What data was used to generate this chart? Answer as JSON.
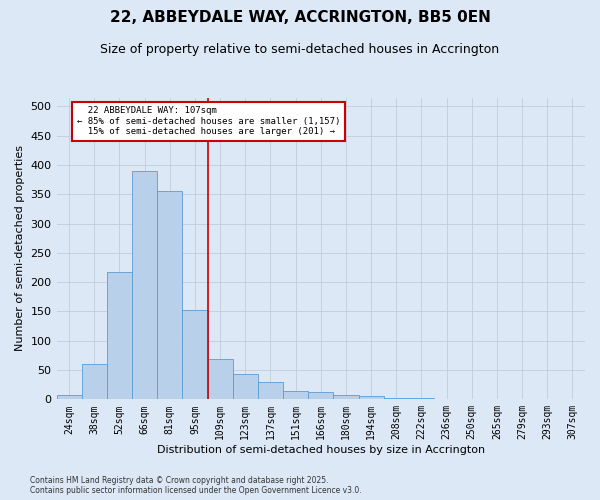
{
  "title": "22, ABBEYDALE WAY, ACCRINGTON, BB5 0EN",
  "subtitle": "Size of property relative to semi-detached houses in Accrington",
  "xlabel": "Distribution of semi-detached houses by size in Accrington",
  "ylabel": "Number of semi-detached properties",
  "footnote": "Contains HM Land Registry data © Crown copyright and database right 2025.\nContains public sector information licensed under the Open Government Licence v3.0.",
  "bins": [
    "24sqm",
    "38sqm",
    "52sqm",
    "66sqm",
    "81sqm",
    "95sqm",
    "109sqm",
    "123sqm",
    "137sqm",
    "151sqm",
    "166sqm",
    "180sqm",
    "194sqm",
    "208sqm",
    "222sqm",
    "236sqm",
    "250sqm",
    "265sqm",
    "279sqm",
    "293sqm",
    "307sqm"
  ],
  "values": [
    8,
    60,
    218,
    390,
    355,
    152,
    68,
    43,
    30,
    15,
    13,
    8,
    5,
    2,
    2,
    1,
    1,
    0,
    1,
    0,
    0
  ],
  "bar_color": "#b8d0ea",
  "bar_edge_color": "#5b9bd5",
  "grid_color": "#c0cedc",
  "property_label": "22 ABBEYDALE WAY: 107sqm",
  "pct_smaller": 85,
  "n_smaller": 1157,
  "pct_larger": 15,
  "n_larger": 201,
  "vline_color": "#cc0000",
  "annotation_box_color": "#cc0000",
  "ylim": [
    0,
    515
  ],
  "yticks": [
    0,
    50,
    100,
    150,
    200,
    250,
    300,
    350,
    400,
    450,
    500
  ],
  "bg_color": "#dce8f5",
  "plot_bg_color": "#dce8f5",
  "title_fontsize": 11,
  "subtitle_fontsize": 9,
  "tick_fontsize": 7,
  "ylabel_fontsize": 8,
  "xlabel_fontsize": 8,
  "footnote_fontsize": 5.5
}
